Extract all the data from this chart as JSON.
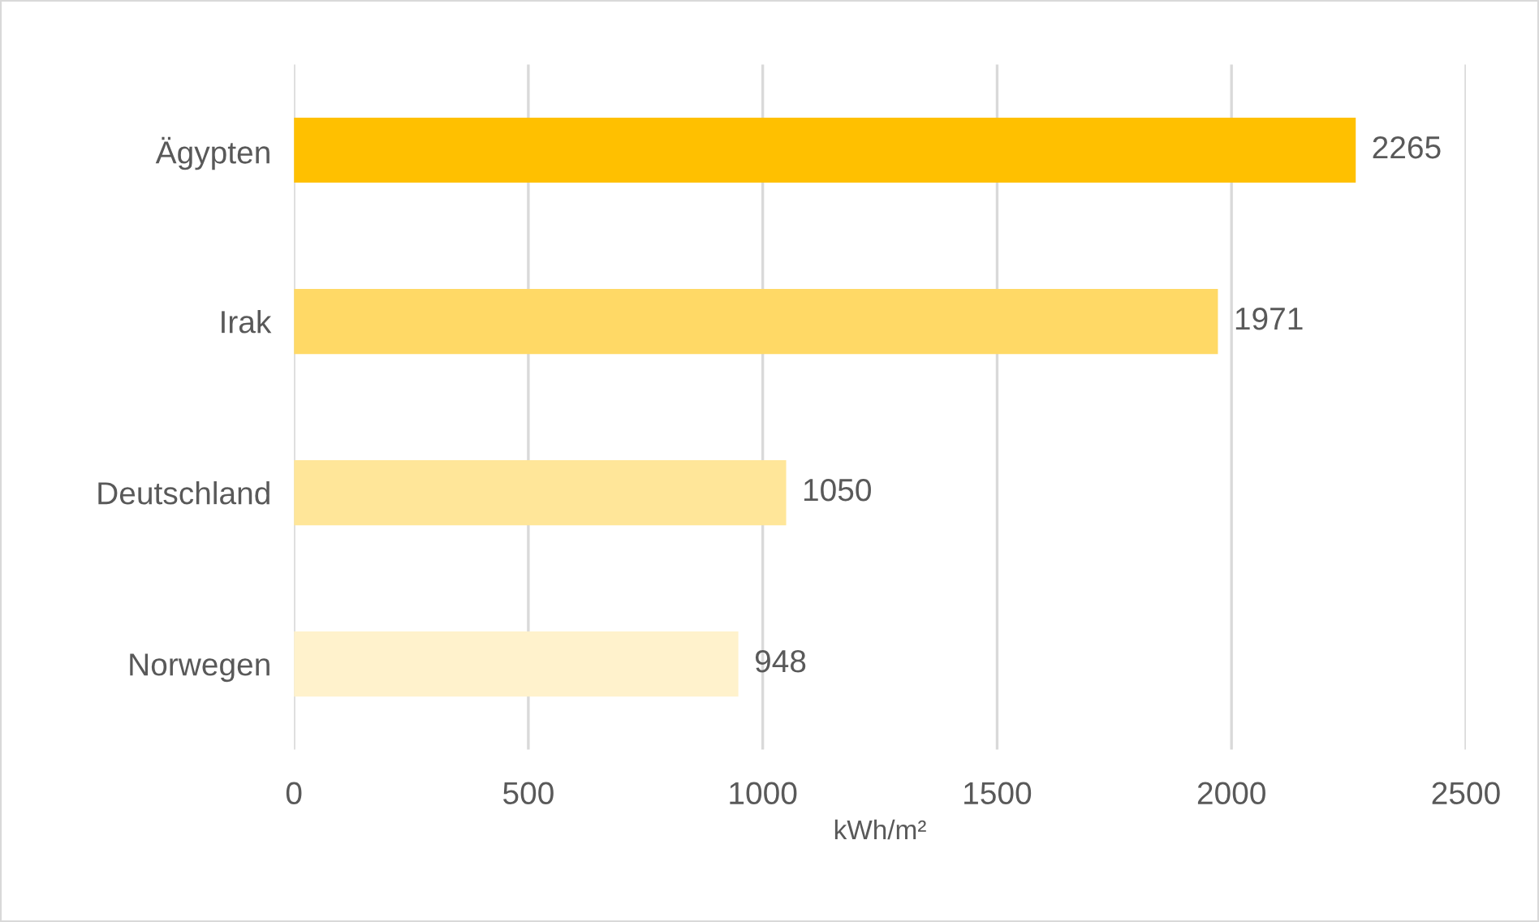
{
  "chart_data": {
    "type": "bar",
    "orientation": "horizontal",
    "categories": [
      "Ägypten",
      "Irak",
      "Deutschland",
      "Norwegen"
    ],
    "values": [
      2265,
      1971,
      1050,
      948
    ],
    "colors": [
      "#ffc000",
      "#ffd966",
      "#ffe699",
      "#fff2cc"
    ],
    "xlabel": "kWh/m²",
    "xlim": [
      0,
      2500
    ],
    "xticks": [
      0,
      500,
      1000,
      1500,
      2000,
      2500
    ],
    "grid": "x",
    "data_labels": true
  }
}
